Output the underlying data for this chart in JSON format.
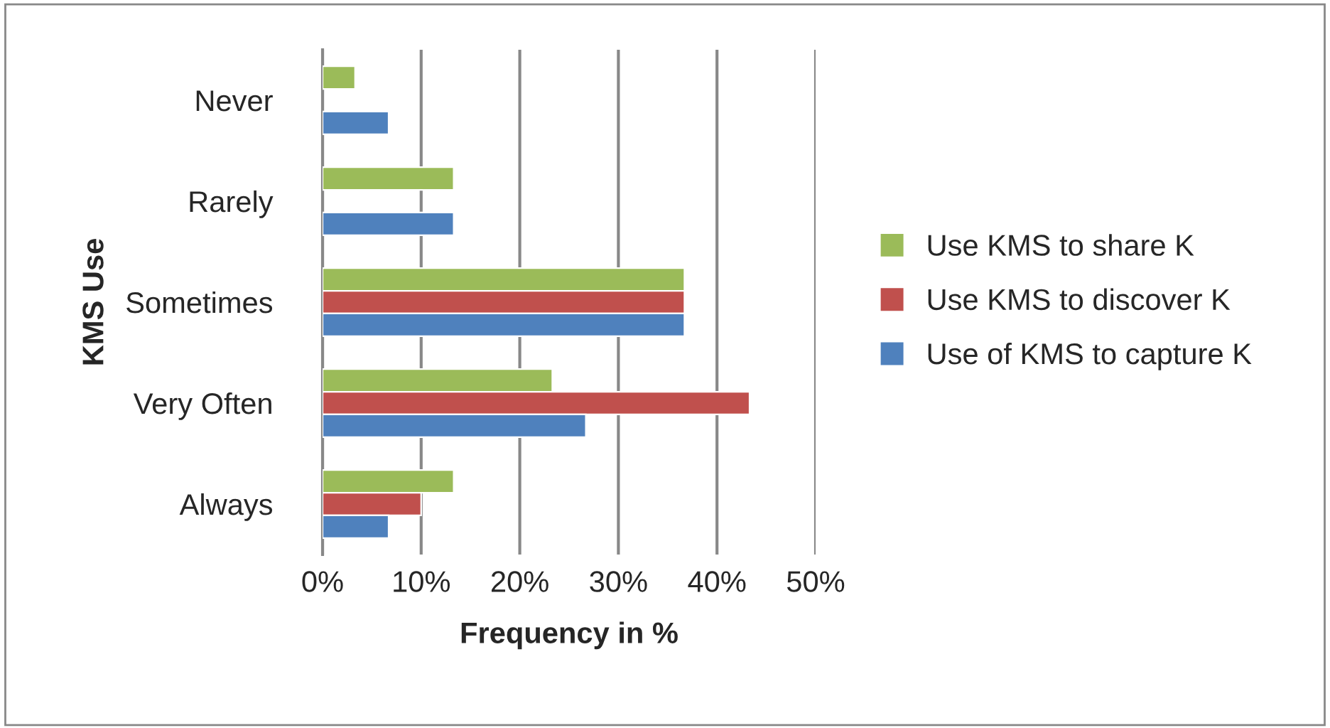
{
  "chart_data": {
    "type": "bar",
    "orientation": "horizontal",
    "xlabel": "Frequency in %",
    "ylabel": "KMS Use",
    "categories": [
      "Never",
      "Rarely",
      "Sometimes",
      "Very Often",
      "Always"
    ],
    "series": [
      {
        "name": "Use KMS to share K",
        "color": "#9bbb59",
        "values": [
          3.3,
          13.3,
          36.7,
          23.3,
          13.3
        ]
      },
      {
        "name": "Use KMS to discover K",
        "color": "#c0504d",
        "values": [
          null,
          null,
          36.7,
          43.3,
          10
        ]
      },
      {
        "name": "Use of KMS to capture K",
        "color": "#4f81bd",
        "values": [
          6.7,
          13.3,
          36.7,
          26.7,
          6.7
        ]
      }
    ],
    "xlim": [
      0,
      50
    ],
    "xticks": [
      {
        "value": 0,
        "label": "0%"
      },
      {
        "value": 10,
        "label": "10%"
      },
      {
        "value": 20,
        "label": "20%"
      },
      {
        "value": 30,
        "label": "30%"
      },
      {
        "value": 40,
        "label": "40%"
      },
      {
        "value": 50,
        "label": "50%"
      }
    ],
    "grid": "x",
    "legend": "right"
  }
}
